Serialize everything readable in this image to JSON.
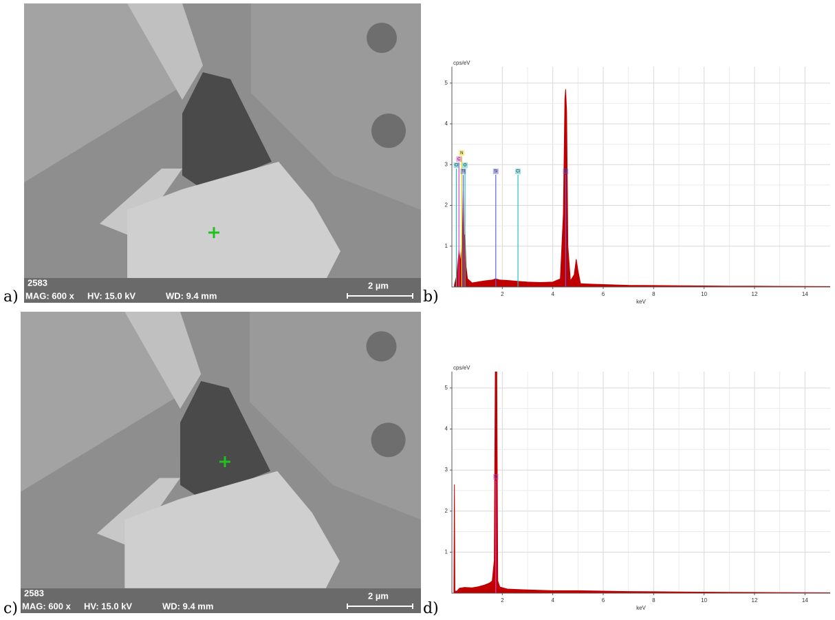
{
  "labels": [
    "a)",
    "b)",
    "c)",
    "d)"
  ],
  "sem_images": [
    {
      "id": "2583",
      "mag": "MAG: 600 x",
      "hv": "HV: 15.0 kV",
      "wd": "WD: 9.4 mm",
      "scale": "2 µm"
    },
    {
      "id": "2583",
      "mag": "MAG: 600 x",
      "hv": "HV: 15.0 kV",
      "wd": "WD: 9.4 mm",
      "scale": "2 µm"
    }
  ],
  "chart_data": [
    {
      "type": "area",
      "ylabel": "cps/eV",
      "xlabel": "keV",
      "color": "#c00000",
      "grid": true,
      "xlim": [
        0,
        15
      ],
      "ylim": [
        0,
        5.4
      ],
      "xticks": [
        2,
        4,
        6,
        8,
        10,
        12,
        14
      ],
      "yticks": [
        1,
        2,
        3,
        4,
        5
      ],
      "x": [
        0.1,
        0.2,
        0.28,
        0.35,
        0.39,
        0.42,
        0.45,
        0.48,
        0.52,
        0.56,
        0.62,
        0.8,
        1.0,
        1.3,
        1.6,
        1.74,
        1.9,
        2.2,
        2.6,
        3.0,
        3.5,
        4.0,
        4.3,
        4.42,
        4.48,
        4.51,
        4.55,
        4.6,
        4.7,
        4.85,
        4.93,
        5.0,
        5.1,
        5.5,
        6,
        7,
        8,
        9,
        10,
        11,
        12,
        13,
        14,
        15
      ],
      "values": [
        0.05,
        0.3,
        0.9,
        0.6,
        1.0,
        1.4,
        2.4,
        1.2,
        1.3,
        0.5,
        0.2,
        0.1,
        0.12,
        0.15,
        0.17,
        0.2,
        0.17,
        0.16,
        0.14,
        0.12,
        0.11,
        0.12,
        0.2,
        1.8,
        4.6,
        4.85,
        4.3,
        1.0,
        0.15,
        0.3,
        0.68,
        0.4,
        0.08,
        0.07,
        0.06,
        0.04,
        0.035,
        0.03,
        0.025,
        0.02,
        0.018,
        0.015,
        0.012,
        0.01
      ],
      "markers": [
        {
          "label": "N",
          "x": 0.39,
          "height": 3.2,
          "color": "#e8d800"
        },
        {
          "label": "C",
          "x": 0.28,
          "height": 3.05,
          "color": "#e040c0"
        },
        {
          "label": "Cl",
          "x": 0.18,
          "height": 2.9,
          "color": "#20c0c0"
        },
        {
          "label": "O",
          "x": 0.52,
          "height": 2.9,
          "color": "#20c0c0"
        },
        {
          "label": "Ti",
          "x": 0.45,
          "height": 2.75,
          "color": "#6060e0"
        },
        {
          "label": "Si",
          "x": 1.74,
          "height": 2.75,
          "color": "#6060e0"
        },
        {
          "label": "Cl",
          "x": 2.62,
          "height": 2.75,
          "color": "#20c0c0"
        },
        {
          "label": "Ti",
          "x": 4.51,
          "height": 2.75,
          "color": "#6060e0"
        }
      ]
    },
    {
      "type": "area",
      "ylabel": "cps/eV",
      "xlabel": "keV",
      "color": "#c00000",
      "grid": true,
      "xlim": [
        0,
        15
      ],
      "ylim": [
        0,
        5.4
      ],
      "xticks": [
        2,
        4,
        6,
        8,
        10,
        12,
        14
      ],
      "yticks": [
        1,
        2,
        3,
        4,
        5
      ],
      "x": [
        0.08,
        0.1,
        0.12,
        0.2,
        0.3,
        0.5,
        0.8,
        1.0,
        1.3,
        1.5,
        1.6,
        1.68,
        1.72,
        1.78,
        1.82,
        1.9,
        2.2,
        3,
        4,
        5,
        6,
        7,
        8,
        9,
        10,
        11,
        12,
        13,
        14,
        15
      ],
      "values": [
        0.05,
        2.65,
        0.05,
        0.05,
        0.12,
        0.14,
        0.13,
        0.15,
        0.2,
        0.25,
        0.3,
        0.8,
        5.4,
        5.4,
        0.3,
        0.15,
        0.1,
        0.08,
        0.06,
        0.06,
        0.05,
        0.04,
        0.035,
        0.03,
        0.025,
        0.02,
        0.018,
        0.015,
        0.012,
        0.01
      ],
      "markers": [
        {
          "label": "Si",
          "x": 1.74,
          "height": 2.75,
          "color": "#e040c0"
        }
      ]
    }
  ]
}
